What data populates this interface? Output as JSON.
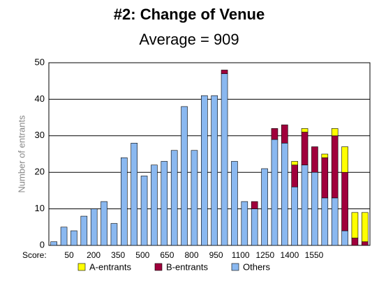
{
  "chart_data": {
    "type": "stacked_bar",
    "title": "#2: Change of Venue",
    "subtitle": "Average = 909",
    "y_label": "Number of entrants",
    "x_label": "Score:",
    "x_labels": [
      "50",
      "200",
      "350",
      "500",
      "650",
      "800",
      "950",
      "1100",
      "1250",
      "1400",
      "1550"
    ],
    "ylim": [
      0,
      50
    ],
    "yticks": [
      0,
      10,
      20,
      30,
      40,
      50
    ],
    "grid": true,
    "series": [
      {
        "name": "Others",
        "color": "#8ab8f0",
        "values": [
          1,
          5,
          4,
          8,
          10,
          12,
          6,
          24,
          28,
          19,
          22,
          23,
          26,
          38,
          26,
          41,
          41,
          47,
          23,
          12,
          10,
          21,
          29,
          28,
          16,
          22,
          20,
          13,
          13,
          4,
          0,
          0
        ]
      },
      {
        "name": "B-entrants",
        "color": "#a0003c",
        "values": [
          0,
          0,
          0,
          0,
          0,
          0,
          0,
          0,
          0,
          0,
          0,
          0,
          0,
          0,
          0,
          0,
          0,
          1,
          0,
          0,
          2,
          0,
          3,
          5,
          6,
          9,
          7,
          11,
          17,
          16,
          2,
          1
        ]
      },
      {
        "name": "A-entrants",
        "color": "#ffff00",
        "values": [
          0,
          0,
          0,
          0,
          0,
          0,
          0,
          0,
          0,
          0,
          0,
          0,
          0,
          0,
          0,
          0,
          0,
          0,
          0,
          0,
          0,
          0,
          0,
          0,
          1,
          1,
          0,
          1,
          2,
          7,
          7,
          8
        ]
      }
    ],
    "legend_order": [
      2,
      1,
      0
    ]
  }
}
